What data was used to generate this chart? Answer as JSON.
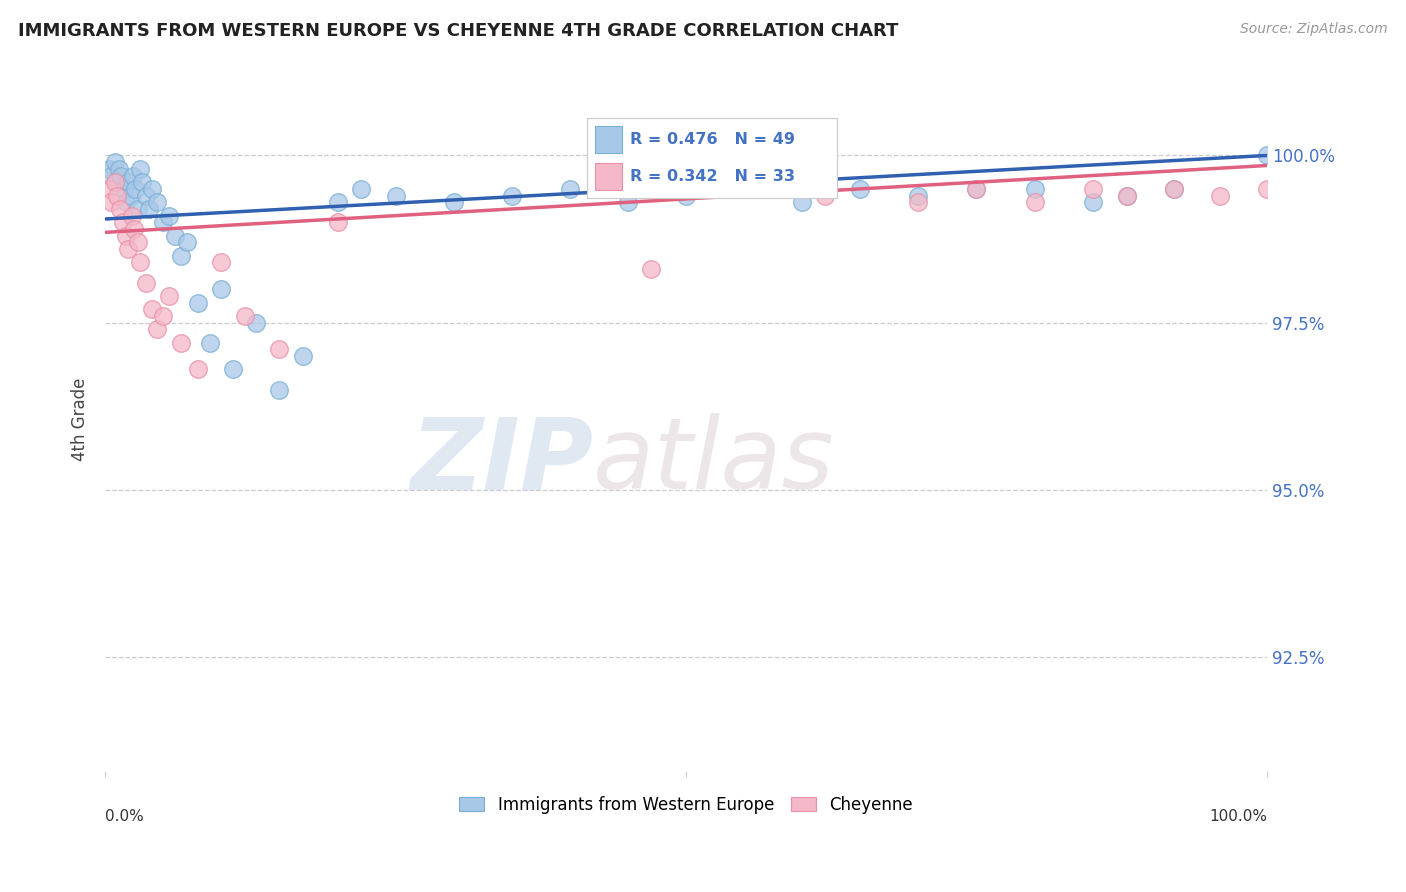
{
  "title": "IMMIGRANTS FROM WESTERN EUROPE VS CHEYENNE 4TH GRADE CORRELATION CHART",
  "source": "Source: ZipAtlas.com",
  "ylabel": "4th Grade",
  "ytick_labels": [
    "92.5%",
    "95.0%",
    "97.5%",
    "100.0%"
  ],
  "ytick_values": [
    92.5,
    95.0,
    97.5,
    100.0
  ],
  "xlim": [
    0.0,
    100.0
  ],
  "ylim": [
    90.8,
    101.3
  ],
  "blue_R": 0.476,
  "blue_N": 49,
  "pink_R": 0.342,
  "pink_N": 33,
  "legend_label_blue": "Immigrants from Western Europe",
  "legend_label_pink": "Cheyenne",
  "blue_color": "#a8c8e8",
  "pink_color": "#f4b8c8",
  "blue_edge_color": "#7aafd4",
  "pink_edge_color": "#e890a8",
  "blue_line_color": "#3060b0",
  "pink_line_color": "#e06080",
  "watermark_zip": "ZIP",
  "watermark_atlas": "atlas",
  "blue_scatter_x": [
    0.3,
    0.5,
    0.8,
    1.0,
    1.2,
    1.4,
    1.6,
    1.8,
    2.0,
    2.2,
    2.4,
    2.6,
    2.8,
    3.0,
    3.2,
    3.5,
    3.8,
    4.0,
    4.5,
    5.0,
    5.5,
    6.0,
    6.5,
    7.0,
    8.0,
    9.0,
    10.0,
    11.0,
    13.0,
    15.0,
    17.0,
    20.0,
    22.0,
    25.0,
    30.0,
    35.0,
    40.0,
    45.0,
    50.0,
    55.0,
    60.0,
    65.0,
    70.0,
    75.0,
    80.0,
    85.0,
    88.0,
    92.0,
    100.0
  ],
  "blue_scatter_y": [
    99.8,
    99.7,
    99.9,
    99.6,
    99.8,
    99.7,
    99.5,
    99.3,
    99.6,
    99.4,
    99.7,
    99.5,
    99.2,
    99.8,
    99.6,
    99.4,
    99.2,
    99.5,
    99.3,
    99.0,
    99.1,
    98.8,
    98.5,
    98.7,
    97.8,
    97.2,
    98.0,
    96.8,
    97.5,
    96.5,
    97.0,
    99.3,
    99.5,
    99.4,
    99.3,
    99.4,
    99.5,
    99.3,
    99.4,
    99.5,
    99.3,
    99.5,
    99.4,
    99.5,
    99.5,
    99.3,
    99.4,
    99.5,
    100.0
  ],
  "pink_scatter_x": [
    0.3,
    0.5,
    0.8,
    1.0,
    1.3,
    1.5,
    1.8,
    2.0,
    2.3,
    2.5,
    2.8,
    3.0,
    3.5,
    4.0,
    4.5,
    5.0,
    5.5,
    6.5,
    8.0,
    10.0,
    12.0,
    15.0,
    20.0,
    47.0,
    62.0,
    70.0,
    75.0,
    80.0,
    85.0,
    88.0,
    92.0,
    96.0,
    100.0
  ],
  "pink_scatter_y": [
    99.5,
    99.3,
    99.6,
    99.4,
    99.2,
    99.0,
    98.8,
    98.6,
    99.1,
    98.9,
    98.7,
    98.4,
    98.1,
    97.7,
    97.4,
    97.6,
    97.9,
    97.2,
    96.8,
    98.4,
    97.6,
    97.1,
    99.0,
    98.3,
    99.4,
    99.3,
    99.5,
    99.3,
    99.5,
    99.4,
    99.5,
    99.4,
    99.5
  ],
  "blue_trendline_x": [
    0.0,
    100.0
  ],
  "blue_trendline_y": [
    99.05,
    100.0
  ],
  "pink_trendline_x": [
    0.0,
    100.0
  ],
  "pink_trendline_y": [
    98.85,
    99.85
  ]
}
